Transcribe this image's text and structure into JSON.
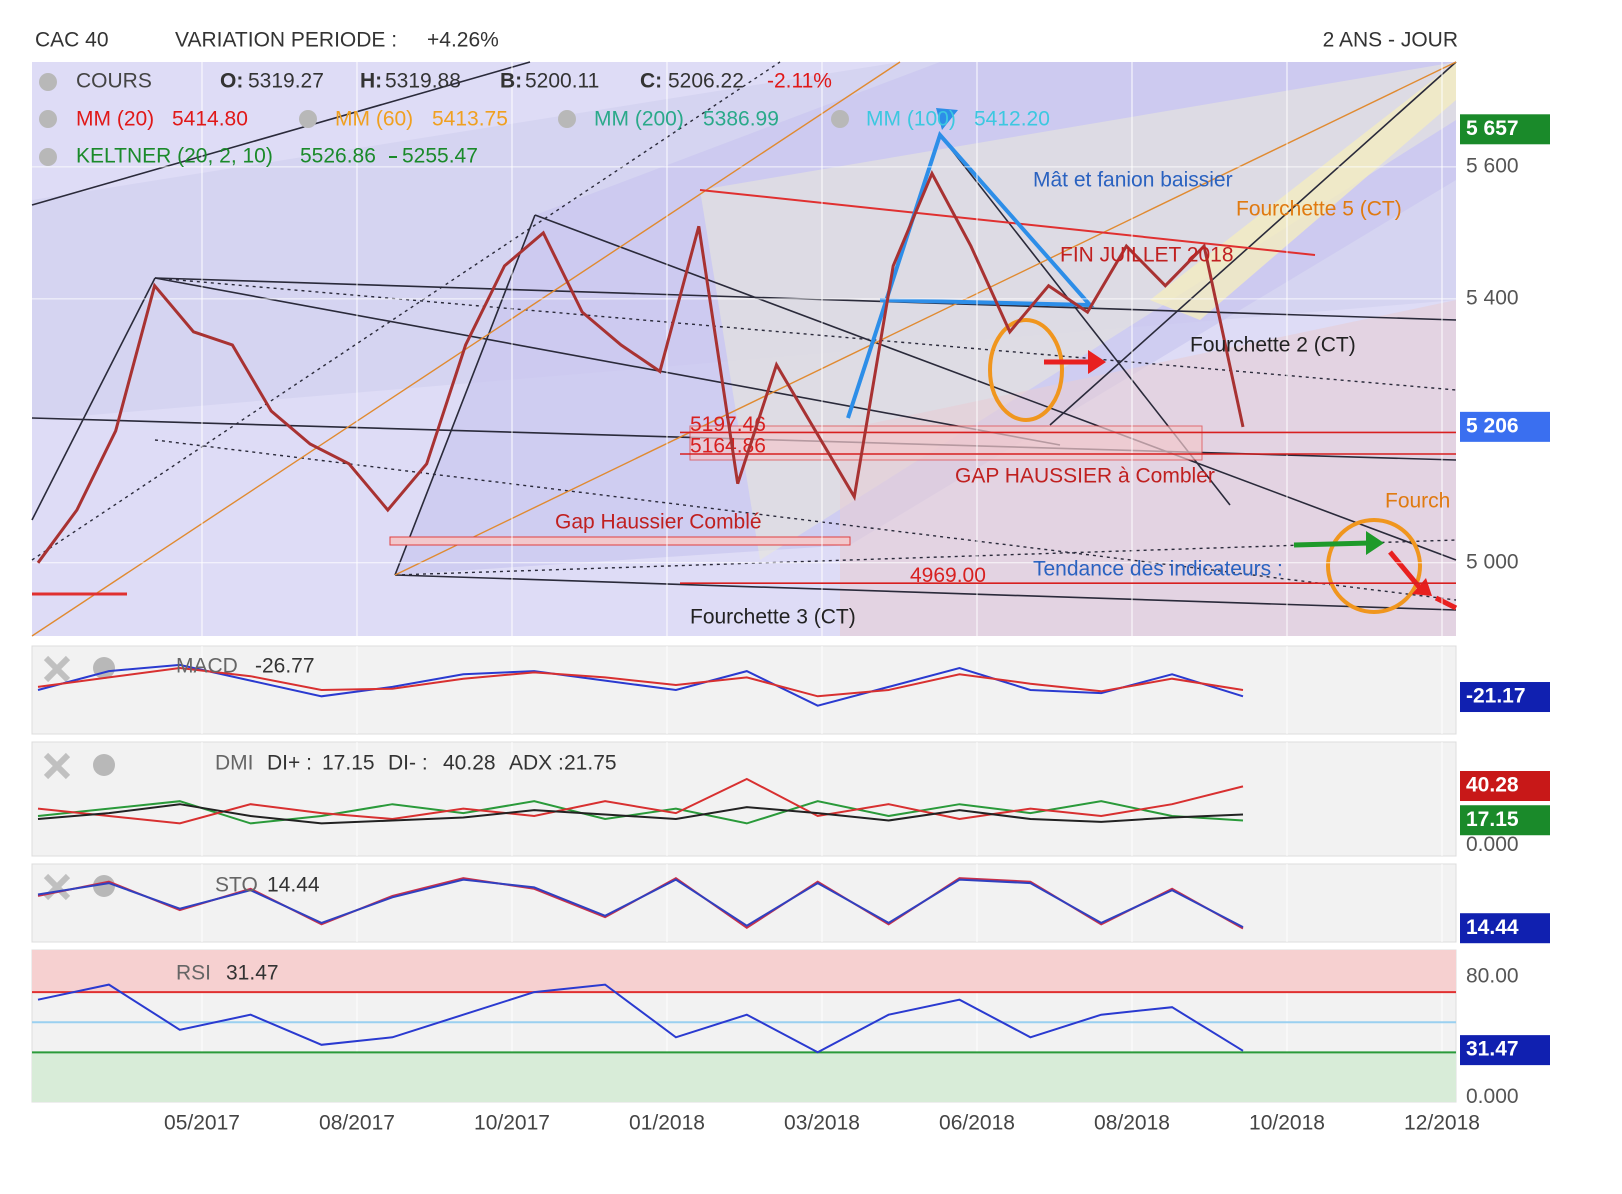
{
  "header": {
    "symbol": "CAC 40",
    "variation_label": "VARIATION PERIODE :",
    "variation": {
      "value": 4.26,
      "label": "+4.26%"
    },
    "period": "2 ANS - JOUR"
  },
  "x_axis": {
    "labels": [
      "05/2017",
      "08/2017",
      "10/2017",
      "01/2018",
      "03/2018",
      "06/2018",
      "08/2018",
      "10/2018",
      "12/2018"
    ]
  },
  "chart_data": [
    {
      "type": "line",
      "series": [
        {
          "name": "COURS",
          "color": "#a83232",
          "values": [
            5000,
            5080,
            5200,
            5420,
            5350,
            5330,
            5230,
            5180,
            5150,
            5080,
            5150,
            5330,
            5450,
            5500,
            5380,
            5330,
            5290,
            5510,
            5120,
            5300,
            5200,
            5100,
            5450,
            5590,
            5480,
            5350,
            5420,
            5380,
            5480,
            5420,
            5480,
            5206
          ]
        }
      ],
      "ohlc": [
        {
          "key": "O:",
          "value": 5319.27
        },
        {
          "key": "H:",
          "value": 5319.88
        },
        {
          "key": "B:",
          "value": 5200.11
        },
        {
          "key": "C:",
          "value": 5206.22
        }
      ],
      "change": {
        "value": -2.11,
        "label": "-2.11%"
      },
      "moving_averages": [
        {
          "name": "MM (20)",
          "value": {
            "value": 5414.8,
            "label": "5414.80"
          },
          "color": "#e01818"
        },
        {
          "name": "MM (60)",
          "value": 5413.75,
          "color": "#f0a020"
        },
        {
          "name": "MM (200)",
          "value": 5386.99,
          "color": "#2aa98a"
        },
        {
          "name": "MM (100)",
          "value": {
            "value": 5412.2,
            "label": "5412.20"
          },
          "color": "#3cc8e0"
        }
      ],
      "keltner": {
        "name": "KELTNER (20, 2, 10)",
        "upper": 5526.86,
        "lower": 5255.47,
        "color": "#1a8a2a"
      },
      "ylim": [
        4889,
        5759
      ],
      "yticks": [
        {
          "value": 5000,
          "label": "5 000"
        },
        {
          "value": 5400,
          "label": "5 400"
        },
        {
          "value": 5600,
          "label": "5 600"
        }
      ],
      "value_labels": [
        {
          "value": 5657,
          "label": "5 657",
          "color": "#1a8a2a"
        },
        {
          "value": 5206,
          "label": "5 206",
          "color": "#3a6ff0"
        }
      ],
      "levels": [
        {
          "value": 5197.46,
          "color": "#d82020"
        },
        {
          "value": 5164.86,
          "color": "#d82020"
        },
        {
          "value": 4969,
          "label": "4969.00",
          "color": "#d82020"
        }
      ],
      "annotations": [
        {
          "text": "Mât et fanion baissier",
          "color": "#2a62c0"
        },
        {
          "text": "Fourchette 5 (CT)",
          "color": "#e07a10"
        },
        {
          "text": "FIN JUILLET 2018",
          "color": "#c02020"
        },
        {
          "text": "Fourchette 2 (CT)",
          "color": "#222222"
        },
        {
          "text": "GAP HAUSSIER à Combler",
          "color": "#c02020"
        },
        {
          "text": "Fourch",
          "color": "#e07a10"
        },
        {
          "text": "Gap Haussier Comblé",
          "color": "#c02020"
        },
        {
          "text": "Tendance des indicateurs :",
          "color": "#2a62c0"
        },
        {
          "text": "Fourchette 3 (CT)",
          "color": "#222222"
        }
      ],
      "grid": true
    },
    {
      "type": "line",
      "name": "MACD",
      "items": [
        {
          "value": -26.77
        }
      ],
      "series": [
        {
          "color": "#2a3ad0",
          "values": [
            -10,
            20,
            30,
            5,
            -20,
            -5,
            15,
            20,
            5,
            -10,
            20,
            -35,
            -5,
            25,
            -10,
            -15,
            15,
            -20
          ]
        },
        {
          "color": "#d83030",
          "values": [
            -5,
            10,
            25,
            12,
            -10,
            -8,
            8,
            18,
            10,
            -2,
            10,
            -20,
            -10,
            15,
            0,
            -12,
            8,
            -10
          ]
        }
      ],
      "ylim": [
        -80,
        60
      ],
      "yticks": [],
      "value_labels": [
        {
          "value": -21.17,
          "color": "#1020b0"
        }
      ]
    },
    {
      "type": "line",
      "name": "DMI",
      "items": [
        {
          "key": "DI+ :",
          "value": 17.15
        },
        {
          "key": "DI- :",
          "value": 40.28
        },
        {
          "key": "ADX :",
          "value": 21.75
        }
      ],
      "series": [
        {
          "color": "#2a9a3a",
          "values": [
            20,
            25,
            30,
            15,
            20,
            28,
            22,
            30,
            18,
            25,
            15,
            30,
            20,
            28,
            22,
            30,
            20,
            17
          ]
        },
        {
          "color": "#d83030",
          "values": [
            25,
            20,
            15,
            28,
            22,
            18,
            25,
            20,
            30,
            22,
            45,
            20,
            28,
            18,
            25,
            20,
            28,
            40
          ]
        },
        {
          "color": "#222222",
          "values": [
            18,
            22,
            28,
            20,
            15,
            17,
            19,
            24,
            21,
            18,
            26,
            22,
            17,
            24,
            18,
            16,
            19,
            21
          ]
        }
      ],
      "ylim": [
        -7,
        70
      ],
      "yticks": [
        {
          "value": 0,
          "label": "0.000"
        }
      ],
      "value_labels": [
        {
          "value": 40.28,
          "color": "#c81818"
        },
        {
          "value": 17.15,
          "color": "#1a8a2a"
        }
      ]
    },
    {
      "type": "line",
      "name": "STO",
      "items": [
        {
          "value": 14.44
        }
      ],
      "series": [
        {
          "color": "#c8304a",
          "values": [
            60,
            80,
            40,
            70,
            20,
            60,
            85,
            70,
            30,
            85,
            15,
            80,
            20,
            85,
            80,
            20,
            70,
            14
          ]
        },
        {
          "color": "#3040c0",
          "values": [
            62,
            78,
            42,
            68,
            22,
            58,
            83,
            72,
            32,
            83,
            18,
            78,
            22,
            83,
            78,
            22,
            68,
            16
          ]
        }
      ],
      "ylim": [
        -5,
        105
      ],
      "yticks": [],
      "value_labels": [
        {
          "value": 14.44,
          "color": "#1020b0"
        }
      ]
    },
    {
      "type": "line",
      "name": "RSI",
      "items": [
        {
          "value": 31.47
        }
      ],
      "series": [
        {
          "color": "#2a3ad0",
          "values": [
            65,
            75,
            45,
            55,
            35,
            40,
            55,
            70,
            75,
            40,
            55,
            30,
            55,
            65,
            40,
            55,
            60,
            31
          ]
        }
      ],
      "overbought": 70,
      "neutral": 50,
      "oversold": 30,
      "ylim": [
        -3,
        98
      ],
      "yticks": [
        {
          "value": 80,
          "label": "80.00"
        },
        {
          "value": 0,
          "label": "0.000"
        }
      ],
      "value_labels": [
        {
          "value": 31.47,
          "color": "#1020b0"
        }
      ]
    }
  ]
}
